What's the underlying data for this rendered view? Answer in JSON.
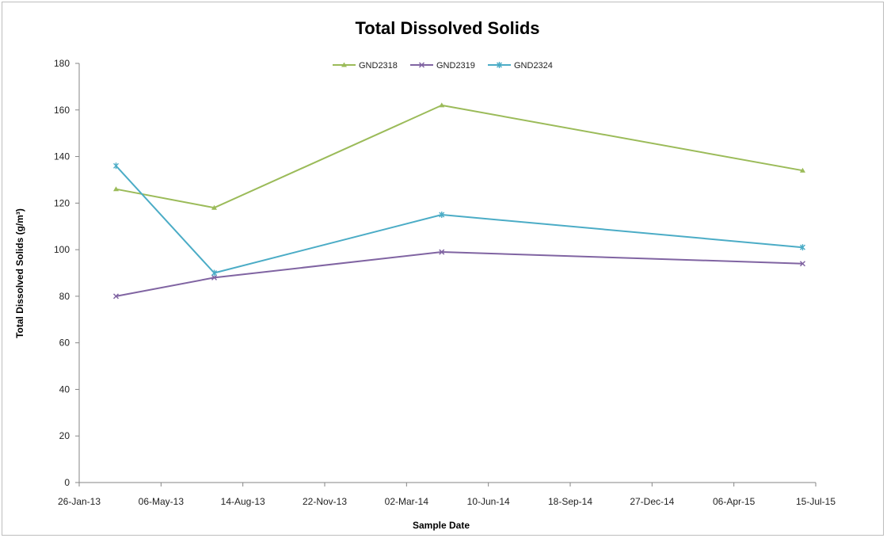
{
  "chart_data": {
    "type": "line",
    "title": "Total Dissolved Solids",
    "xlabel": "Sample Date",
    "ylabel": "Total Dissolved Solids (g/m³)",
    "x_tick_labels": [
      "26-Jan-13",
      "06-May-13",
      "14-Aug-13",
      "22-Nov-13",
      "02-Mar-14",
      "10-Jun-14",
      "18-Sep-14",
      "27-Dec-14",
      "06-Apr-15",
      "15-Jul-15"
    ],
    "y_ticks": [
      0,
      20,
      40,
      60,
      80,
      100,
      120,
      140,
      160,
      180
    ],
    "xlim": [
      "2013-01-26",
      "2015-07-15"
    ],
    "ylim": [
      0,
      180
    ],
    "grid": false,
    "legend_position": "top-center",
    "series": [
      {
        "name": "GND2318",
        "color": "#9bbb59",
        "marker": "triangle",
        "points": [
          {
            "x": "2013-03-12",
            "y": 126
          },
          {
            "x": "2013-07-10",
            "y": 118
          },
          {
            "x": "2014-04-14",
            "y": 162
          },
          {
            "x": "2015-06-29",
            "y": 134
          }
        ]
      },
      {
        "name": "GND2319",
        "color": "#8064a2",
        "marker": "x",
        "points": [
          {
            "x": "2013-03-12",
            "y": 80
          },
          {
            "x": "2013-07-10",
            "y": 88
          },
          {
            "x": "2014-04-14",
            "y": 99
          },
          {
            "x": "2015-06-29",
            "y": 94
          }
        ]
      },
      {
        "name": "GND2324",
        "color": "#4bacc6",
        "marker": "star",
        "points": [
          {
            "x": "2013-03-12",
            "y": 136
          },
          {
            "x": "2013-07-10",
            "y": 90
          },
          {
            "x": "2014-04-14",
            "y": 115
          },
          {
            "x": "2015-06-29",
            "y": 101
          }
        ]
      }
    ]
  }
}
